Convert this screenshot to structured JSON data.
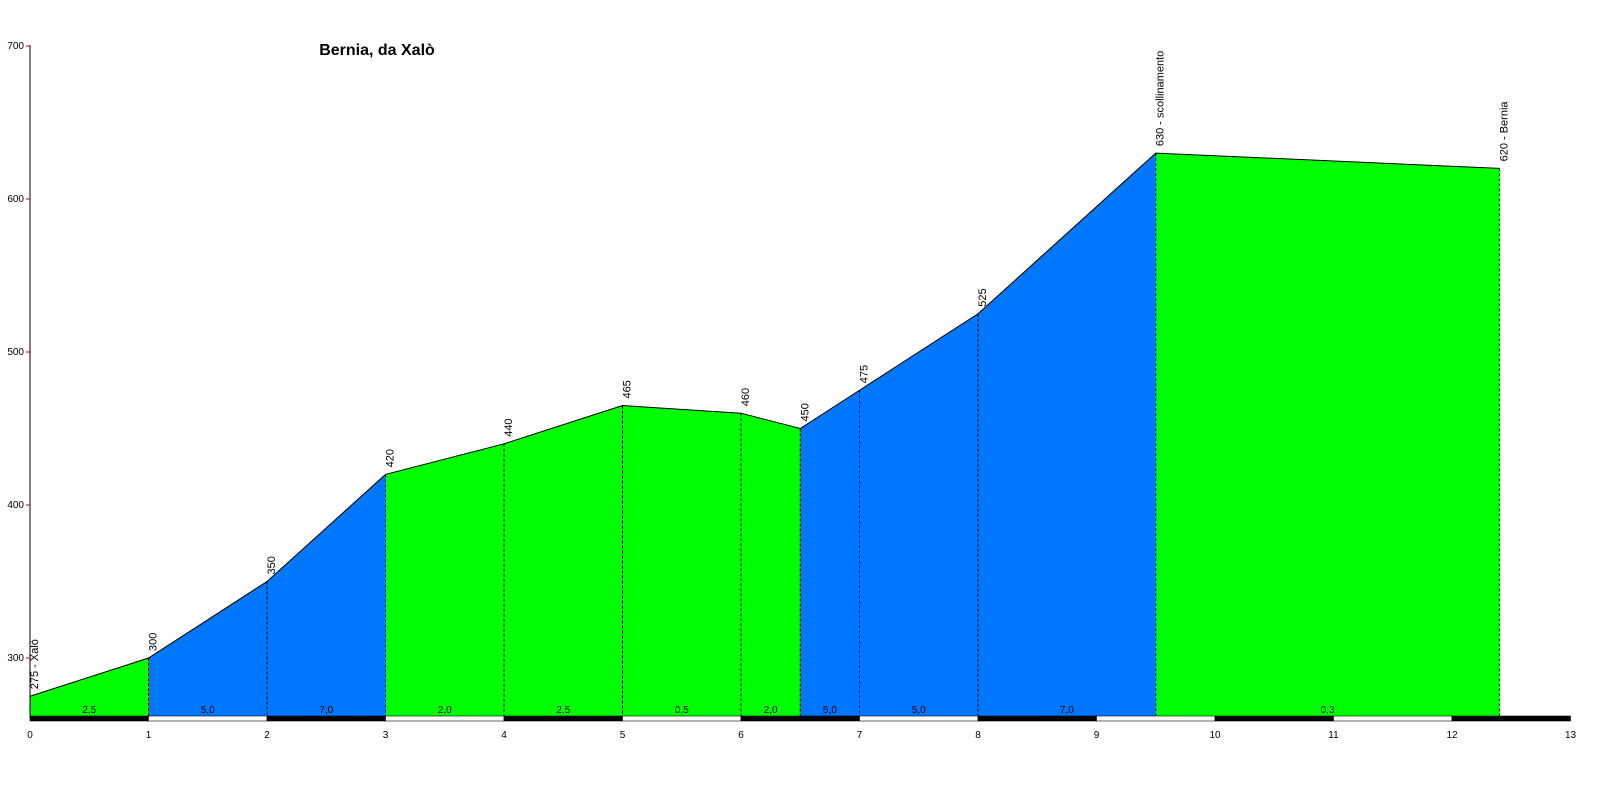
{
  "chart_data": {
    "type": "area",
    "title": "Bernia, da Xalò",
    "xlabel": "",
    "ylabel": "",
    "xlim": [
      0,
      13
    ],
    "ylim": [
      260,
      700
    ],
    "y_ticks": [
      300,
      400,
      500,
      600,
      700
    ],
    "x_ticks": [
      0,
      1,
      2,
      3,
      4,
      5,
      6,
      7,
      8,
      9,
      10,
      11,
      12,
      13
    ],
    "points": [
      {
        "x": 0,
        "y": 275,
        "label": "275 - Xalò"
      },
      {
        "x": 1,
        "y": 300,
        "label": "300"
      },
      {
        "x": 2,
        "y": 350,
        "label": "350"
      },
      {
        "x": 3,
        "y": 420,
        "label": "420"
      },
      {
        "x": 4,
        "y": 440,
        "label": "440"
      },
      {
        "x": 5,
        "y": 465,
        "label": "465"
      },
      {
        "x": 6,
        "y": 460,
        "label": "460"
      },
      {
        "x": 6.5,
        "y": 450,
        "label": "450"
      },
      {
        "x": 7,
        "y": 475,
        "label": "475"
      },
      {
        "x": 8,
        "y": 525,
        "label": "525"
      },
      {
        "x": 9.5,
        "y": 630,
        "label": "630 - scollinamento"
      },
      {
        "x": 12.4,
        "y": 620,
        "label": "620 - Bernia"
      }
    ],
    "segments": [
      {
        "from": 0,
        "to": 1,
        "gradient": "2,5",
        "color": "#00ff00"
      },
      {
        "from": 1,
        "to": 2,
        "gradient": "5,0",
        "color": "#0077ff"
      },
      {
        "from": 2,
        "to": 3,
        "gradient": "7,0",
        "color": "#0077ff"
      },
      {
        "from": 3,
        "to": 4,
        "gradient": "2,0",
        "color": "#00ff00"
      },
      {
        "from": 4,
        "to": 5,
        "gradient": "2,5",
        "color": "#00ff00"
      },
      {
        "from": 5,
        "to": 6,
        "gradient": "0,5",
        "color": "#00ff00"
      },
      {
        "from": 6,
        "to": 6.5,
        "gradient": "2,0",
        "color": "#00ff00"
      },
      {
        "from": 6.5,
        "to": 7,
        "gradient": "5,0",
        "color": "#0077ff"
      },
      {
        "from": 7,
        "to": 8,
        "gradient": "5,0",
        "color": "#0077ff"
      },
      {
        "from": 8,
        "to": 9.5,
        "gradient": "7,0",
        "color": "#0077ff"
      },
      {
        "from": 9.5,
        "to": 12.4,
        "gradient": "0,3",
        "color": "#00ff00"
      }
    ],
    "grid": false,
    "colors": {
      "easy": "#00ff00",
      "steep": "#0077ff",
      "axis": "#000000"
    }
  }
}
